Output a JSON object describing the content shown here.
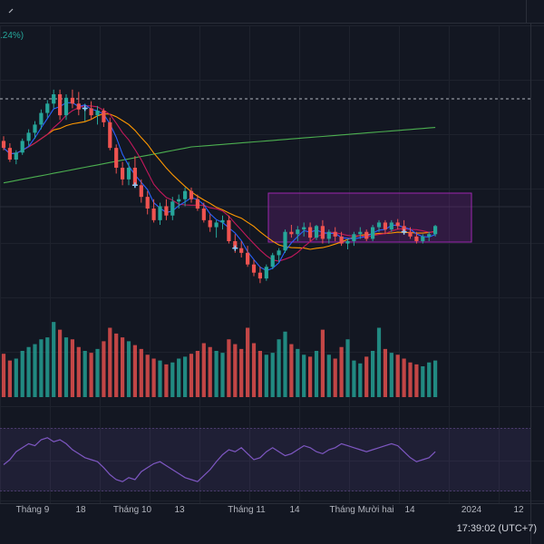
{
  "header": {
    "change_pct": ".24%)"
  },
  "x_axis": {
    "labels": [
      "Tháng 9",
      "18",
      "Tháng 10",
      "13",
      "Tháng 11",
      "14",
      "Tháng Mười hai",
      "14",
      "2024",
      "12"
    ]
  },
  "status": {
    "time": "17:39:02 (UTC+7)"
  },
  "colors": {
    "bg": "#131722",
    "up": "#26a69a",
    "down": "#ef5350",
    "rsi": "#7e57c2",
    "box": "#9c27b0"
  },
  "icons": {
    "toolbar_chevron": "chevron-icon"
  },
  "chart_data": {
    "type": "candlestick",
    "candles": [
      {
        "o": 168,
        "h": 172,
        "l": 160,
        "c": 162
      },
      {
        "o": 162,
        "h": 166,
        "l": 150,
        "c": 152
      },
      {
        "o": 152,
        "h": 160,
        "l": 148,
        "c": 158
      },
      {
        "o": 158,
        "h": 170,
        "l": 156,
        "c": 168
      },
      {
        "o": 168,
        "h": 178,
        "l": 164,
        "c": 175
      },
      {
        "o": 175,
        "h": 185,
        "l": 170,
        "c": 182
      },
      {
        "o": 182,
        "h": 195,
        "l": 178,
        "c": 192
      },
      {
        "o": 192,
        "h": 203,
        "l": 188,
        "c": 200
      },
      {
        "o": 200,
        "h": 212,
        "l": 196,
        "c": 208
      },
      {
        "o": 208,
        "h": 212,
        "l": 186,
        "c": 190
      },
      {
        "o": 190,
        "h": 208,
        "l": 186,
        "c": 205
      },
      {
        "o": 205,
        "h": 212,
        "l": 196,
        "c": 200
      },
      {
        "o": 200,
        "h": 210,
        "l": 190,
        "c": 195
      },
      {
        "o": 195,
        "h": 200,
        "l": 185,
        "c": 196
      },
      {
        "o": 196,
        "h": 202,
        "l": 186,
        "c": 190
      },
      {
        "o": 190,
        "h": 198,
        "l": 182,
        "c": 194
      },
      {
        "o": 194,
        "h": 196,
        "l": 180,
        "c": 184
      },
      {
        "o": 184,
        "h": 188,
        "l": 160,
        "c": 162
      },
      {
        "o": 162,
        "h": 165,
        "l": 140,
        "c": 145
      },
      {
        "o": 145,
        "h": 150,
        "l": 130,
        "c": 135
      },
      {
        "o": 135,
        "h": 150,
        "l": 130,
        "c": 145
      },
      {
        "o": 145,
        "h": 155,
        "l": 128,
        "c": 130
      },
      {
        "o": 130,
        "h": 135,
        "l": 115,
        "c": 120
      },
      {
        "o": 120,
        "h": 125,
        "l": 105,
        "c": 110
      },
      {
        "o": 110,
        "h": 118,
        "l": 98,
        "c": 100
      },
      {
        "o": 100,
        "h": 115,
        "l": 96,
        "c": 112
      },
      {
        "o": 112,
        "h": 118,
        "l": 100,
        "c": 104
      },
      {
        "o": 104,
        "h": 120,
        "l": 100,
        "c": 116
      },
      {
        "o": 116,
        "h": 122,
        "l": 110,
        "c": 118
      },
      {
        "o": 118,
        "h": 128,
        "l": 112,
        "c": 125
      },
      {
        "o": 125,
        "h": 128,
        "l": 115,
        "c": 118
      },
      {
        "o": 118,
        "h": 122,
        "l": 108,
        "c": 110
      },
      {
        "o": 110,
        "h": 115,
        "l": 98,
        "c": 100
      },
      {
        "o": 100,
        "h": 105,
        "l": 90,
        "c": 94
      },
      {
        "o": 94,
        "h": 100,
        "l": 85,
        "c": 98
      },
      {
        "o": 98,
        "h": 104,
        "l": 92,
        "c": 100
      },
      {
        "o": 100,
        "h": 104,
        "l": 80,
        "c": 82
      },
      {
        "o": 82,
        "h": 88,
        "l": 72,
        "c": 76
      },
      {
        "o": 76,
        "h": 82,
        "l": 68,
        "c": 72
      },
      {
        "o": 72,
        "h": 78,
        "l": 60,
        "c": 62
      },
      {
        "o": 62,
        "h": 66,
        "l": 52,
        "c": 55
      },
      {
        "o": 55,
        "h": 60,
        "l": 46,
        "c": 50
      },
      {
        "o": 50,
        "h": 62,
        "l": 48,
        "c": 60
      },
      {
        "o": 60,
        "h": 72,
        "l": 58,
        "c": 70
      },
      {
        "o": 70,
        "h": 76,
        "l": 64,
        "c": 74
      },
      {
        "o": 74,
        "h": 92,
        "l": 72,
        "c": 90
      },
      {
        "o": 90,
        "h": 96,
        "l": 85,
        "c": 88
      },
      {
        "o": 88,
        "h": 95,
        "l": 82,
        "c": 92
      },
      {
        "o": 92,
        "h": 98,
        "l": 86,
        "c": 94
      },
      {
        "o": 94,
        "h": 98,
        "l": 82,
        "c": 85
      },
      {
        "o": 85,
        "h": 96,
        "l": 83,
        "c": 95
      },
      {
        "o": 95,
        "h": 100,
        "l": 80,
        "c": 84
      },
      {
        "o": 84,
        "h": 92,
        "l": 80,
        "c": 90
      },
      {
        "o": 90,
        "h": 94,
        "l": 82,
        "c": 86
      },
      {
        "o": 86,
        "h": 90,
        "l": 78,
        "c": 80
      },
      {
        "o": 80,
        "h": 84,
        "l": 75,
        "c": 82
      },
      {
        "o": 82,
        "h": 90,
        "l": 78,
        "c": 88
      },
      {
        "o": 88,
        "h": 94,
        "l": 84,
        "c": 90
      },
      {
        "o": 90,
        "h": 92,
        "l": 82,
        "c": 84
      },
      {
        "o": 84,
        "h": 96,
        "l": 82,
        "c": 94
      },
      {
        "o": 94,
        "h": 100,
        "l": 90,
        "c": 98
      },
      {
        "o": 98,
        "h": 100,
        "l": 88,
        "c": 92
      },
      {
        "o": 92,
        "h": 100,
        "l": 90,
        "c": 98
      },
      {
        "o": 98,
        "h": 101,
        "l": 92,
        "c": 95
      },
      {
        "o": 95,
        "h": 100,
        "l": 88,
        "c": 90
      },
      {
        "o": 90,
        "h": 94,
        "l": 84,
        "c": 86
      },
      {
        "o": 86,
        "h": 90,
        "l": 80,
        "c": 82
      },
      {
        "o": 82,
        "h": 88,
        "l": 80,
        "c": 86
      },
      {
        "o": 86,
        "h": 90,
        "l": 82,
        "c": 88
      },
      {
        "o": 88,
        "h": 96,
        "l": 86,
        "c": 95
      }
    ],
    "volumes": [
      45,
      38,
      40,
      48,
      52,
      55,
      60,
      62,
      78,
      70,
      62,
      60,
      52,
      48,
      46,
      50,
      58,
      72,
      66,
      62,
      58,
      54,
      50,
      44,
      40,
      38,
      34,
      36,
      40,
      42,
      45,
      48,
      56,
      52,
      48,
      46,
      60,
      55,
      50,
      72,
      56,
      48,
      44,
      46,
      60,
      68,
      55,
      50,
      44,
      42,
      48,
      70,
      44,
      40,
      52,
      60,
      38,
      35,
      42,
      48,
      72,
      50,
      46,
      44,
      40,
      36,
      34,
      32,
      36,
      38
    ],
    "rsi": [
      45,
      50,
      58,
      62,
      66,
      64,
      70,
      72,
      68,
      70,
      66,
      60,
      56,
      52,
      50,
      48,
      42,
      35,
      30,
      28,
      32,
      30,
      38,
      42,
      46,
      48,
      44,
      40,
      36,
      32,
      30,
      28,
      34,
      40,
      48,
      55,
      60,
      58,
      62,
      56,
      50,
      52,
      58,
      62,
      58,
      54,
      56,
      60,
      64,
      62,
      58,
      56,
      60,
      62,
      66,
      64,
      62,
      60,
      58,
      60,
      62,
      64,
      66,
      64,
      58,
      52,
      48,
      50,
      52,
      58
    ]
  }
}
